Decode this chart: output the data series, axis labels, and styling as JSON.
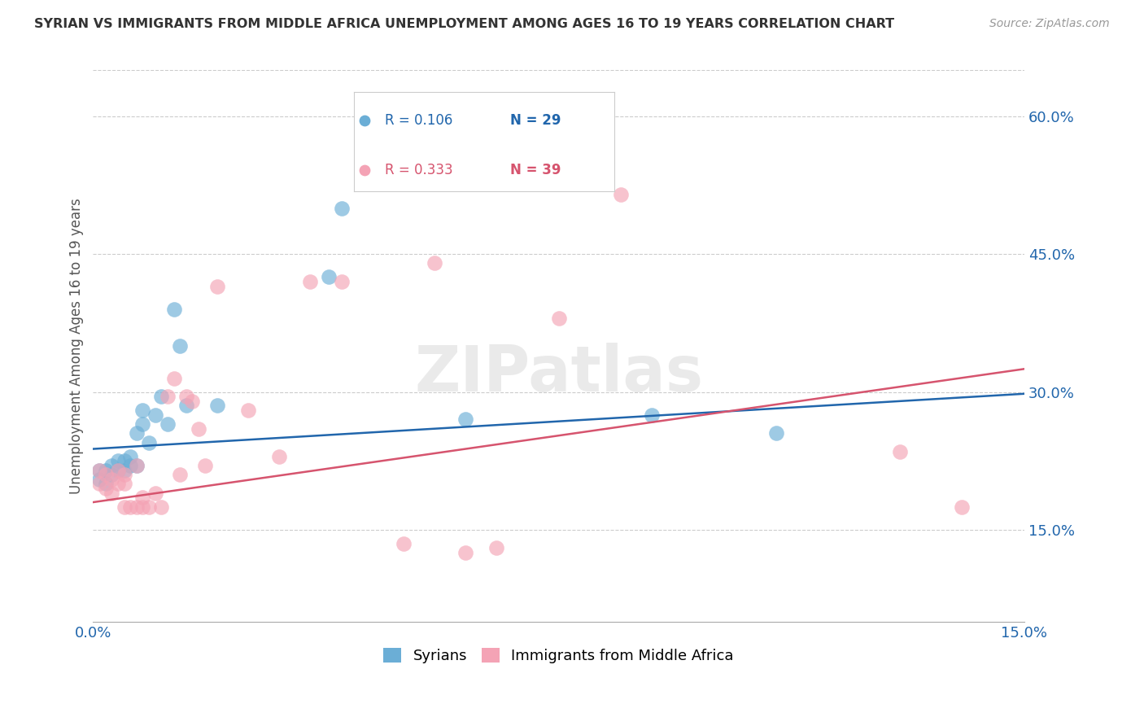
{
  "title": "SYRIAN VS IMMIGRANTS FROM MIDDLE AFRICA UNEMPLOYMENT AMONG AGES 16 TO 19 YEARS CORRELATION CHART",
  "source": "Source: ZipAtlas.com",
  "ylabel": "Unemployment Among Ages 16 to 19 years",
  "xlim": [
    0.0,
    0.15
  ],
  "ylim": [
    0.05,
    0.65
  ],
  "y_ticks_right": [
    0.15,
    0.3,
    0.45,
    0.6
  ],
  "y_tick_labels_right": [
    "15.0%",
    "30.0%",
    "45.0%",
    "60.0%"
  ],
  "legend_R1": "R = 0.106",
  "legend_N1": "N = 29",
  "legend_R2": "R = 0.333",
  "legend_N2": "N = 39",
  "legend_label1": "Syrians",
  "legend_label2": "Immigrants from Middle Africa",
  "blue_color": "#6baed6",
  "pink_color": "#f4a3b5",
  "blue_line_color": "#2166ac",
  "pink_line_color": "#d6546e",
  "blue_text_color": "#2166ac",
  "pink_text_color": "#d6546e",
  "watermark": "ZIPatlas",
  "syrian_x": [
    0.001,
    0.001,
    0.002,
    0.002,
    0.003,
    0.003,
    0.004,
    0.004,
    0.005,
    0.005,
    0.006,
    0.006,
    0.007,
    0.007,
    0.008,
    0.008,
    0.009,
    0.01,
    0.011,
    0.012,
    0.013,
    0.014,
    0.015,
    0.02,
    0.038,
    0.04,
    0.06,
    0.09,
    0.11
  ],
  "syrian_y": [
    0.205,
    0.215,
    0.2,
    0.215,
    0.21,
    0.22,
    0.215,
    0.225,
    0.215,
    0.225,
    0.23,
    0.22,
    0.255,
    0.22,
    0.265,
    0.28,
    0.245,
    0.275,
    0.295,
    0.265,
    0.39,
    0.35,
    0.285,
    0.285,
    0.425,
    0.5,
    0.27,
    0.275,
    0.255
  ],
  "africa_x": [
    0.001,
    0.001,
    0.002,
    0.002,
    0.003,
    0.003,
    0.004,
    0.004,
    0.005,
    0.005,
    0.005,
    0.006,
    0.007,
    0.007,
    0.008,
    0.008,
    0.009,
    0.01,
    0.011,
    0.012,
    0.013,
    0.014,
    0.015,
    0.016,
    0.017,
    0.018,
    0.02,
    0.025,
    0.03,
    0.035,
    0.04,
    0.05,
    0.055,
    0.06,
    0.065,
    0.075,
    0.085,
    0.13,
    0.14
  ],
  "africa_y": [
    0.2,
    0.215,
    0.195,
    0.21,
    0.19,
    0.205,
    0.2,
    0.215,
    0.21,
    0.2,
    0.175,
    0.175,
    0.175,
    0.22,
    0.175,
    0.185,
    0.175,
    0.19,
    0.175,
    0.295,
    0.315,
    0.21,
    0.295,
    0.29,
    0.26,
    0.22,
    0.415,
    0.28,
    0.23,
    0.42,
    0.42,
    0.135,
    0.44,
    0.125,
    0.13,
    0.38,
    0.515,
    0.235,
    0.175
  ],
  "blue_line_x": [
    0.0,
    0.15
  ],
  "blue_line_y": [
    0.238,
    0.298
  ],
  "pink_line_x": [
    0.0,
    0.15
  ],
  "pink_line_y": [
    0.18,
    0.325
  ]
}
